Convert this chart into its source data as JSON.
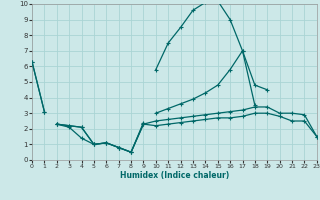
{
  "xlabel": "Humidex (Indice chaleur)",
  "background_color": "#cce8e8",
  "grid_color": "#aad4d4",
  "line_color": "#006868",
  "xlim": [
    0,
    23
  ],
  "ylim": [
    0,
    10
  ],
  "xticks": [
    0,
    1,
    2,
    3,
    4,
    5,
    6,
    7,
    8,
    9,
    10,
    11,
    12,
    13,
    14,
    15,
    16,
    17,
    18,
    19,
    20,
    21,
    22,
    23
  ],
  "yticks": [
    0,
    1,
    2,
    3,
    4,
    5,
    6,
    7,
    8,
    9,
    10
  ],
  "line_peak": [
    6.3,
    3.1,
    null,
    null,
    null,
    null,
    null,
    null,
    null,
    null,
    5.8,
    7.5,
    8.5,
    9.6,
    10.1,
    10.2,
    9.0,
    7.0,
    4.8,
    4.5,
    null,
    null,
    null,
    null
  ],
  "line_upper": [
    6.3,
    3.1,
    null,
    null,
    null,
    null,
    null,
    null,
    null,
    null,
    3.0,
    3.3,
    3.6,
    3.9,
    4.3,
    4.8,
    5.8,
    7.0,
    3.5,
    null,
    null,
    null,
    null,
    null
  ],
  "line_zigzag": [
    null,
    null,
    2.3,
    2.1,
    1.4,
    1.0,
    1.1,
    0.8,
    0.5,
    2.4,
    null,
    null,
    null,
    null,
    null,
    null,
    null,
    null,
    null,
    null,
    null,
    null,
    null,
    null
  ],
  "line_low1": [
    null,
    null,
    2.3,
    2.2,
    2.1,
    1.0,
    1.1,
    0.8,
    0.5,
    2.3,
    2.5,
    2.6,
    2.7,
    2.8,
    2.9,
    3.0,
    3.1,
    3.2,
    3.4,
    3.4,
    3.0,
    3.0,
    2.9,
    1.5
  ],
  "line_low2": [
    null,
    null,
    2.3,
    2.2,
    2.1,
    1.0,
    1.1,
    0.8,
    0.5,
    2.3,
    2.2,
    2.3,
    2.4,
    2.5,
    2.6,
    2.7,
    2.7,
    2.8,
    3.0,
    3.0,
    2.8,
    2.5,
    2.5,
    1.5
  ]
}
